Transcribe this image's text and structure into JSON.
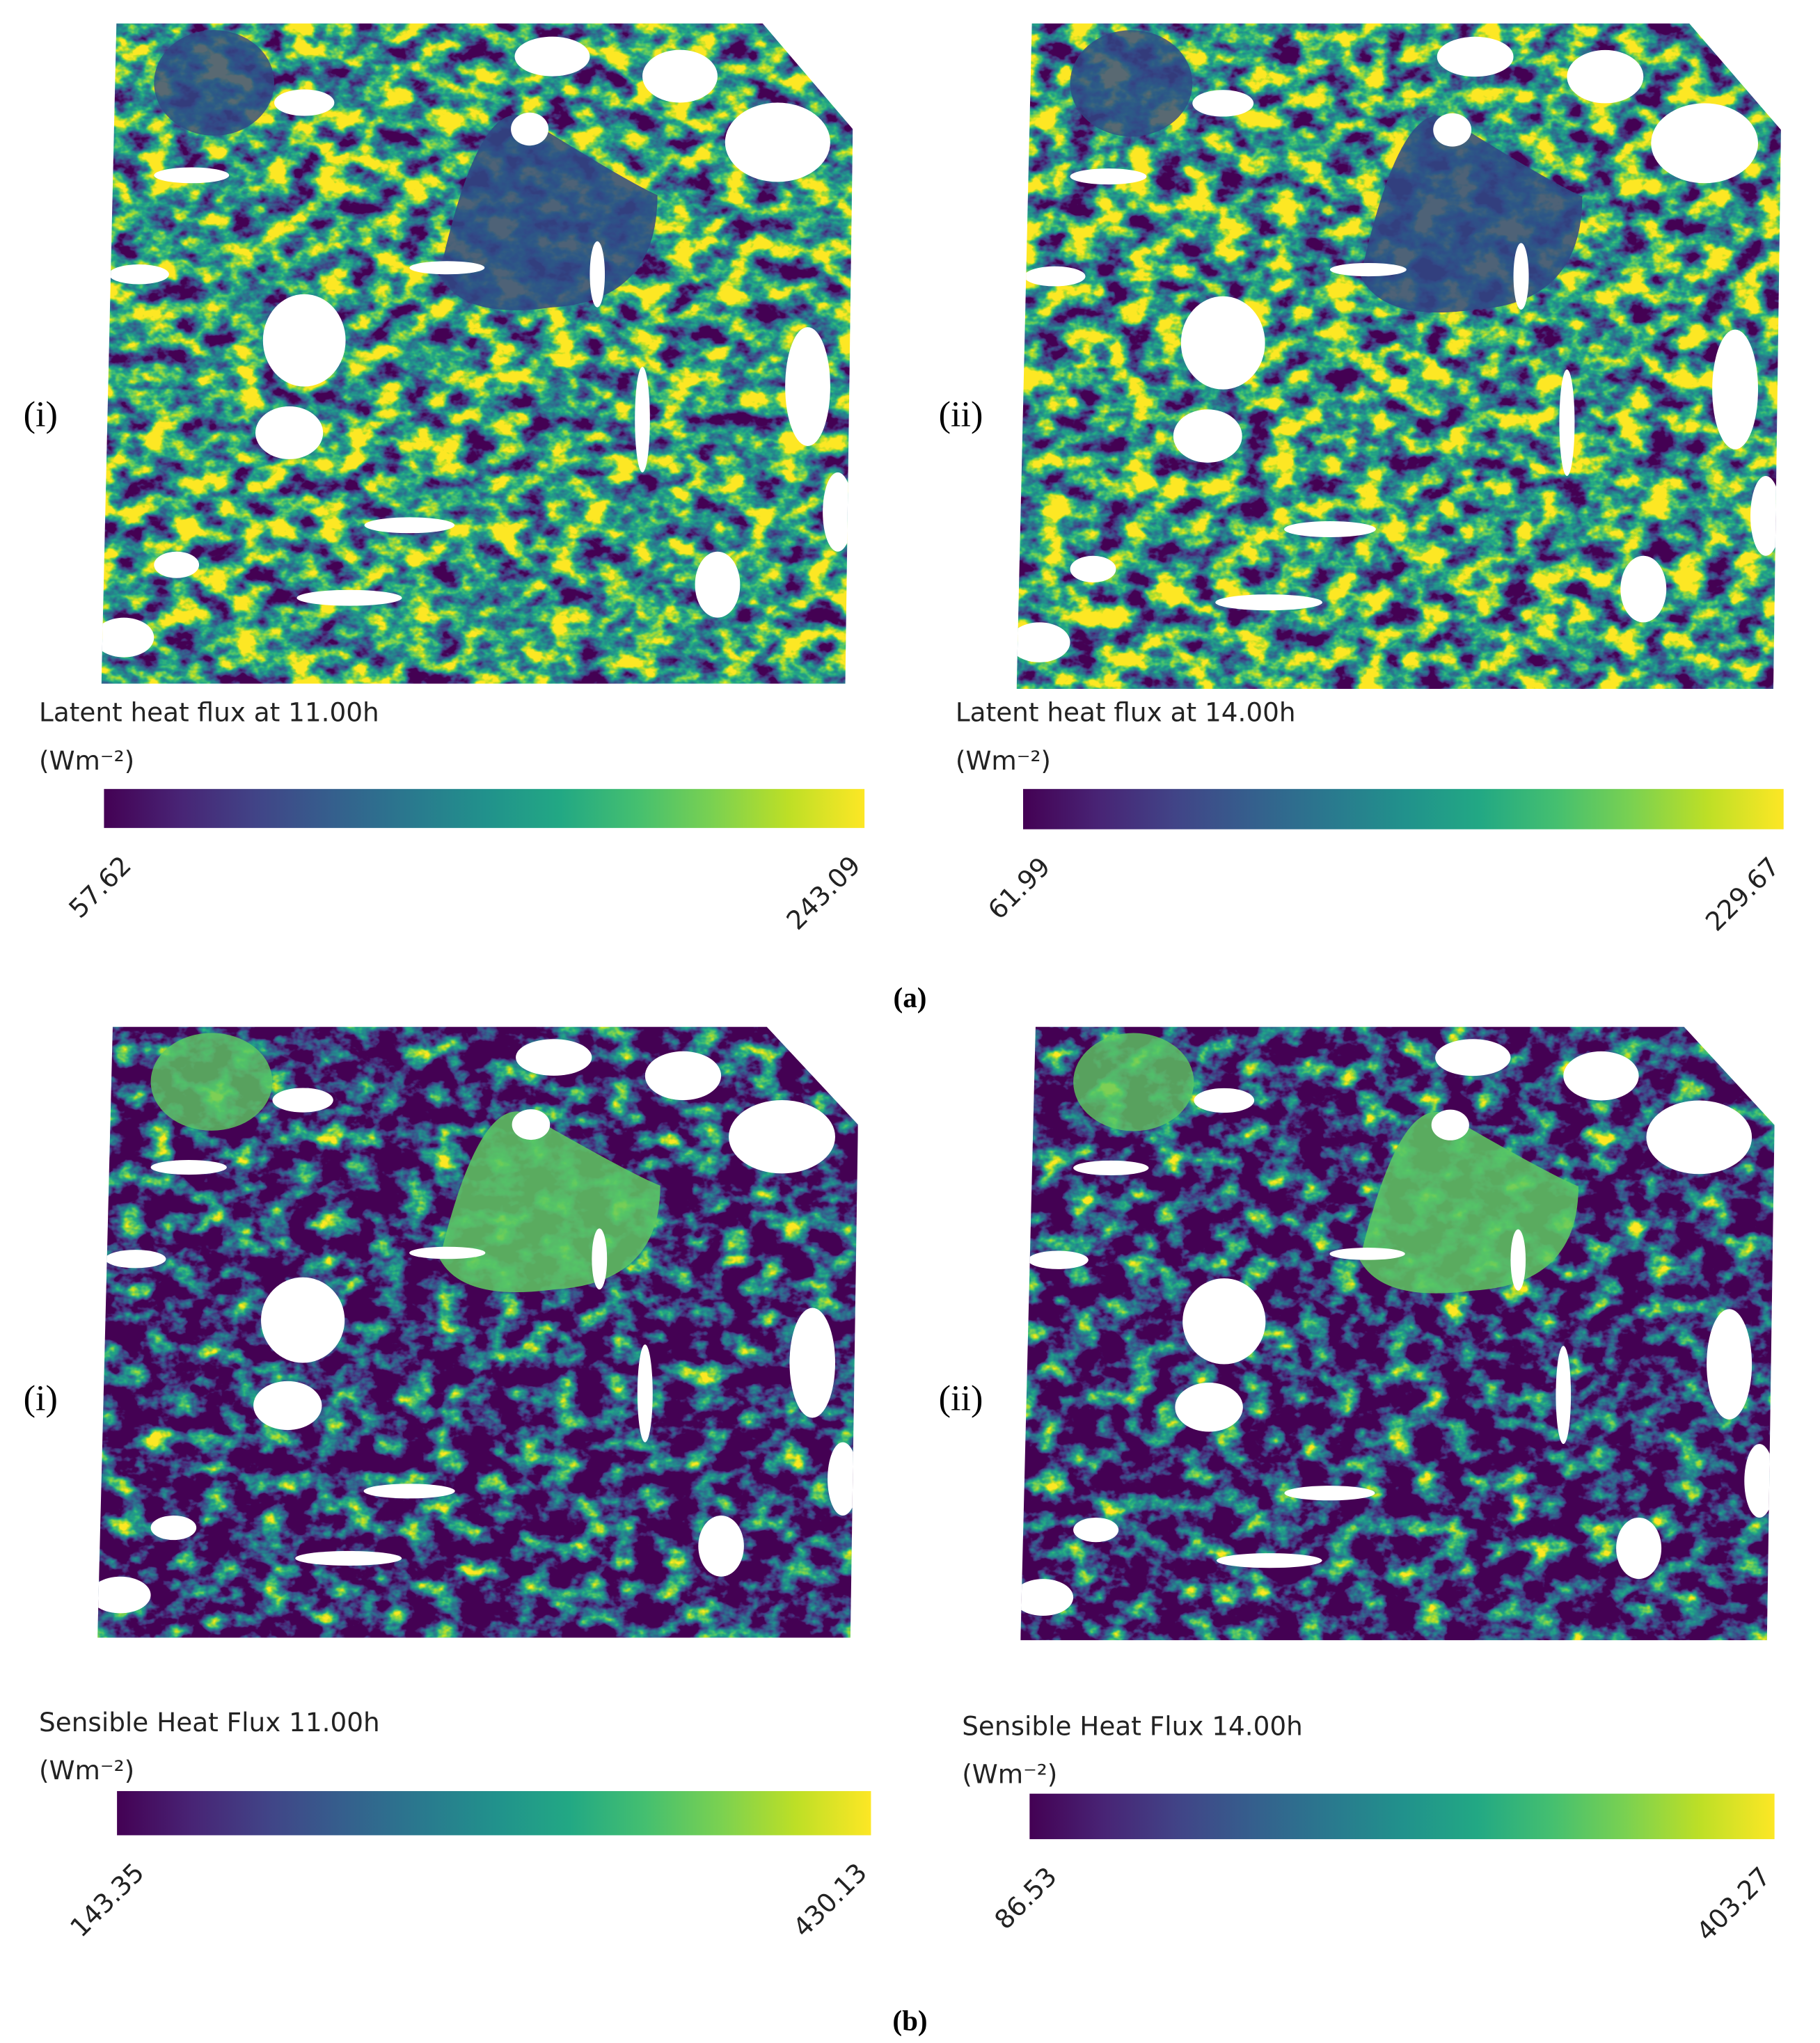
{
  "panels": [
    {
      "label": "(i)",
      "title": "Latent heat flux at 11.00h",
      "unit": "(Wm⁻²)",
      "min": 57.62,
      "max": 243.09
    },
    {
      "label": "(ii)",
      "title": "Latent heat flux at 14.00h",
      "unit": "(Wm⁻²)",
      "min": 61.99,
      "max": 229.67
    },
    {
      "label": "(i)",
      "title": "Sensible Heat Flux 11.00h",
      "unit": "(Wm⁻²)",
      "min": 143.35,
      "max": 430.13
    },
    {
      "label": "(ii)",
      "title": "Sensible Heat Flux 14.00h",
      "unit": "(Wm⁻²)",
      "min": 86.53,
      "max": 403.27
    }
  ],
  "captions": [
    "(a)",
    "(b)"
  ]
}
